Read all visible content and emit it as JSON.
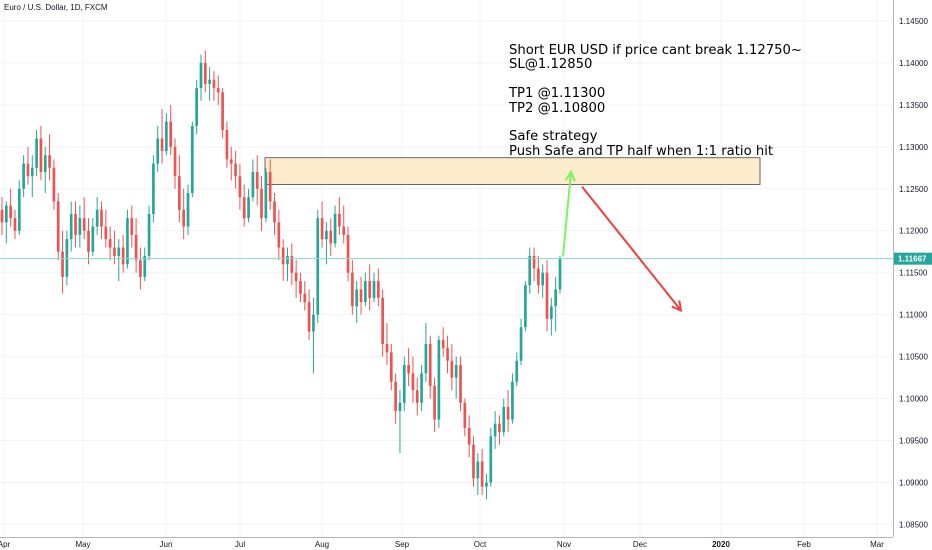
{
  "header": {
    "symbol_title": "Euro / U.S. Dollar, 1D, FXCM"
  },
  "annotation": {
    "lines": [
      "Short EUR USD if price cant break 1.12750~",
      "SL@1.12850",
      "",
      "TP1 @1.11300",
      "TP2 @1.10800",
      "",
      "Safe strategy",
      "Push Safe and TP half when 1:1 ratio hit"
    ]
  },
  "chart_data": {
    "type": "candlestick",
    "symbol": "EUR/USD",
    "interval": "1D",
    "broker": "FXCM",
    "x_tick_labels": [
      "Apr",
      "May",
      "Jun",
      "Jul",
      "Aug",
      "Sep",
      "Oct",
      "Nov",
      "Dec",
      "2020",
      "Feb",
      "Mar"
    ],
    "y_tick_labels": [
      "1.14500",
      "1.14000",
      "1.13500",
      "1.13000",
      "1.12500",
      "1.12000",
      "1.11500",
      "1.11000",
      "1.10500",
      "1.10000",
      "1.09500",
      "1.09000",
      "1.08500"
    ],
    "ylim": [
      1.0835,
      1.1475
    ],
    "last_price": "1.11667",
    "last_price_value": 1.11667,
    "resistance_zone": {
      "low": 1.1255,
      "high": 1.1287
    },
    "projected_path": [
      {
        "label": "up",
        "from": 1.1167,
        "to": 1.127,
        "color": "#7ef35a"
      },
      {
        "label": "down",
        "from": 1.1255,
        "to": 1.1105,
        "color": "#f23d3d"
      }
    ],
    "candles": [
      [
        1.1225,
        1.124,
        1.1195,
        1.121
      ],
      [
        1.121,
        1.1235,
        1.1185,
        1.123
      ],
      [
        1.123,
        1.125,
        1.1205,
        1.1215
      ],
      [
        1.1215,
        1.1225,
        1.119,
        1.12
      ],
      [
        1.12,
        1.126,
        1.1195,
        1.125
      ],
      [
        1.125,
        1.129,
        1.124,
        1.128
      ],
      [
        1.128,
        1.13,
        1.1255,
        1.1265
      ],
      [
        1.1265,
        1.129,
        1.124,
        1.1275
      ],
      [
        1.1275,
        1.132,
        1.1265,
        1.131
      ],
      [
        1.131,
        1.1325,
        1.126,
        1.127
      ],
      [
        1.127,
        1.13,
        1.1245,
        1.129
      ],
      [
        1.129,
        1.1315,
        1.126,
        1.1275
      ],
      [
        1.1275,
        1.1285,
        1.1225,
        1.1235
      ],
      [
        1.1235,
        1.1245,
        1.1165,
        1.1175
      ],
      [
        1.1175,
        1.12,
        1.1125,
        1.1145
      ],
      [
        1.1145,
        1.12,
        1.1135,
        1.119
      ],
      [
        1.119,
        1.1235,
        1.1175,
        1.122
      ],
      [
        1.122,
        1.1235,
        1.118,
        1.1195
      ],
      [
        1.1195,
        1.123,
        1.118,
        1.1215
      ],
      [
        1.1215,
        1.124,
        1.119,
        1.12
      ],
      [
        1.12,
        1.1215,
        1.116,
        1.1175
      ],
      [
        1.1175,
        1.1215,
        1.117,
        1.1205
      ],
      [
        1.1205,
        1.124,
        1.1195,
        1.1225
      ],
      [
        1.1225,
        1.1235,
        1.119,
        1.1205
      ],
      [
        1.1205,
        1.1225,
        1.118,
        1.119
      ],
      [
        1.119,
        1.1205,
        1.1165,
        1.118
      ],
      [
        1.118,
        1.12,
        1.116,
        1.117
      ],
      [
        1.117,
        1.119,
        1.114,
        1.118
      ],
      [
        1.118,
        1.1195,
        1.115,
        1.116
      ],
      [
        1.116,
        1.1225,
        1.1155,
        1.1215
      ],
      [
        1.1215,
        1.123,
        1.118,
        1.1195
      ],
      [
        1.1195,
        1.1215,
        1.115,
        1.1165
      ],
      [
        1.1165,
        1.118,
        1.113,
        1.1145
      ],
      [
        1.1145,
        1.118,
        1.114,
        1.117
      ],
      [
        1.117,
        1.123,
        1.1165,
        1.122
      ],
      [
        1.122,
        1.129,
        1.121,
        1.128
      ],
      [
        1.128,
        1.1325,
        1.127,
        1.131
      ],
      [
        1.131,
        1.1345,
        1.128,
        1.1295
      ],
      [
        1.1295,
        1.134,
        1.129,
        1.133
      ],
      [
        1.133,
        1.135,
        1.129,
        1.13
      ],
      [
        1.13,
        1.131,
        1.125,
        1.1265
      ],
      [
        1.1265,
        1.129,
        1.121,
        1.1225
      ],
      [
        1.1225,
        1.125,
        1.119,
        1.1205
      ],
      [
        1.1205,
        1.1255,
        1.1195,
        1.1245
      ],
      [
        1.1245,
        1.133,
        1.124,
        1.1325
      ],
      [
        1.1325,
        1.138,
        1.1315,
        1.137
      ],
      [
        1.137,
        1.141,
        1.1355,
        1.14
      ],
      [
        1.14,
        1.1415,
        1.1365,
        1.1375
      ],
      [
        1.1375,
        1.1395,
        1.1355,
        1.138
      ],
      [
        1.138,
        1.139,
        1.1355,
        1.137
      ],
      [
        1.137,
        1.1385,
        1.135,
        1.1365
      ],
      [
        1.1365,
        1.137,
        1.131,
        1.132
      ],
      [
        1.132,
        1.133,
        1.1275,
        1.1285
      ],
      [
        1.1285,
        1.13,
        1.126,
        1.128
      ],
      [
        1.128,
        1.1295,
        1.125,
        1.1265
      ],
      [
        1.1265,
        1.128,
        1.1225,
        1.124
      ],
      [
        1.124,
        1.1255,
        1.1205,
        1.1215
      ],
      [
        1.1215,
        1.125,
        1.121,
        1.124
      ],
      [
        1.124,
        1.1285,
        1.1235,
        1.127
      ],
      [
        1.127,
        1.129,
        1.123,
        1.125
      ],
      [
        1.125,
        1.1265,
        1.12,
        1.1215
      ],
      [
        1.1215,
        1.1275,
        1.121,
        1.127
      ],
      [
        1.127,
        1.1285,
        1.1225,
        1.1235
      ],
      [
        1.1235,
        1.1245,
        1.1195,
        1.121
      ],
      [
        1.121,
        1.1225,
        1.1165,
        1.118
      ],
      [
        1.118,
        1.119,
        1.114,
        1.116
      ],
      [
        1.116,
        1.118,
        1.114,
        1.117
      ],
      [
        1.117,
        1.1185,
        1.1135,
        1.115
      ],
      [
        1.115,
        1.1165,
        1.112,
        1.114
      ],
      [
        1.114,
        1.115,
        1.1115,
        1.1125
      ],
      [
        1.1125,
        1.114,
        1.1105,
        1.1115
      ],
      [
        1.1115,
        1.113,
        1.107,
        1.108
      ],
      [
        1.108,
        1.112,
        1.103,
        1.11
      ],
      [
        1.11,
        1.1225,
        1.109,
        1.1215
      ],
      [
        1.1215,
        1.1235,
        1.118,
        1.119
      ],
      [
        1.119,
        1.121,
        1.116,
        1.12
      ],
      [
        1.12,
        1.1215,
        1.117,
        1.1185
      ],
      [
        1.1185,
        1.123,
        1.118,
        1.122
      ],
      [
        1.122,
        1.124,
        1.1195,
        1.1205
      ],
      [
        1.1205,
        1.123,
        1.1185,
        1.1195
      ],
      [
        1.1195,
        1.1205,
        1.114,
        1.115
      ],
      [
        1.115,
        1.1165,
        1.11,
        1.111
      ],
      [
        1.111,
        1.114,
        1.109,
        1.113
      ],
      [
        1.113,
        1.1145,
        1.11,
        1.1115
      ],
      [
        1.1115,
        1.115,
        1.111,
        1.114
      ],
      [
        1.114,
        1.116,
        1.1105,
        1.112
      ],
      [
        1.112,
        1.115,
        1.1115,
        1.114
      ],
      [
        1.114,
        1.1155,
        1.111,
        1.112
      ],
      [
        1.112,
        1.113,
        1.105,
        1.1065
      ],
      [
        1.1065,
        1.109,
        1.104,
        1.1055
      ],
      [
        1.1055,
        1.1065,
        1.101,
        1.102
      ],
      [
        1.102,
        1.103,
        1.097,
        1.0985
      ],
      [
        1.0985,
        1.101,
        1.0935,
        1.0995
      ],
      [
        1.0995,
        1.105,
        1.0985,
        1.104
      ],
      [
        1.104,
        1.106,
        1.1015,
        1.103
      ],
      [
        1.103,
        1.105,
        1.0995,
        1.101
      ],
      [
        1.101,
        1.1025,
        1.098,
        1.0995
      ],
      [
        1.0995,
        1.104,
        1.0985,
        1.103
      ],
      [
        1.103,
        1.109,
        1.102,
        1.1065
      ],
      [
        1.1065,
        1.1075,
        1.1,
        1.1015
      ],
      [
        1.1015,
        1.1025,
        1.096,
        1.0975
      ],
      [
        1.0975,
        1.1075,
        1.0965,
        1.107
      ],
      [
        1.107,
        1.1085,
        1.105,
        1.106
      ],
      [
        1.106,
        1.1075,
        1.103,
        1.1045
      ],
      [
        1.1045,
        1.1065,
        1.101,
        1.1025
      ],
      [
        1.1025,
        1.105,
        1.1,
        1.104
      ],
      [
        1.104,
        1.105,
        1.0985,
        1.0995
      ],
      [
        1.0995,
        1.1,
        1.0955,
        1.0965
      ],
      [
        1.0965,
        1.098,
        1.093,
        1.0945
      ],
      [
        1.0945,
        1.0955,
        1.0895,
        1.0905
      ],
      [
        1.0905,
        1.0935,
        1.0885,
        1.0925
      ],
      [
        1.0925,
        1.094,
        1.0885,
        1.0895
      ],
      [
        1.0895,
        1.091,
        1.088,
        1.09
      ],
      [
        1.09,
        1.0965,
        1.0895,
        1.0955
      ],
      [
        1.0955,
        1.0985,
        1.094,
        1.097
      ],
      [
        1.097,
        1.098,
        1.0945,
        1.096
      ],
      [
        1.096,
        1.1,
        1.0955,
        1.099
      ],
      [
        1.099,
        1.101,
        1.096,
        1.0975
      ],
      [
        1.0975,
        1.103,
        1.097,
        1.102
      ],
      [
        1.102,
        1.1055,
        1.1015,
        1.1045
      ],
      [
        1.1045,
        1.1095,
        1.104,
        1.1085
      ],
      [
        1.1085,
        1.114,
        1.108,
        1.1135
      ],
      [
        1.1135,
        1.118,
        1.1125,
        1.117
      ],
      [
        1.117,
        1.118,
        1.114,
        1.1155
      ],
      [
        1.1155,
        1.117,
        1.1125,
        1.1135
      ],
      [
        1.1135,
        1.116,
        1.112,
        1.115
      ],
      [
        1.115,
        1.1165,
        1.108,
        1.1095
      ],
      [
        1.1095,
        1.112,
        1.1075,
        1.111
      ],
      [
        1.111,
        1.1145,
        1.108,
        1.113
      ],
      [
        1.113,
        1.117,
        1.1125,
        1.1167
      ]
    ]
  },
  "colors": {
    "up": "#26a69a",
    "down": "#ef5350",
    "zone_fill": "#fdeccc",
    "zone_stroke": "#444444",
    "price_line": "#8ad6d0",
    "badge": "#26a69a"
  }
}
